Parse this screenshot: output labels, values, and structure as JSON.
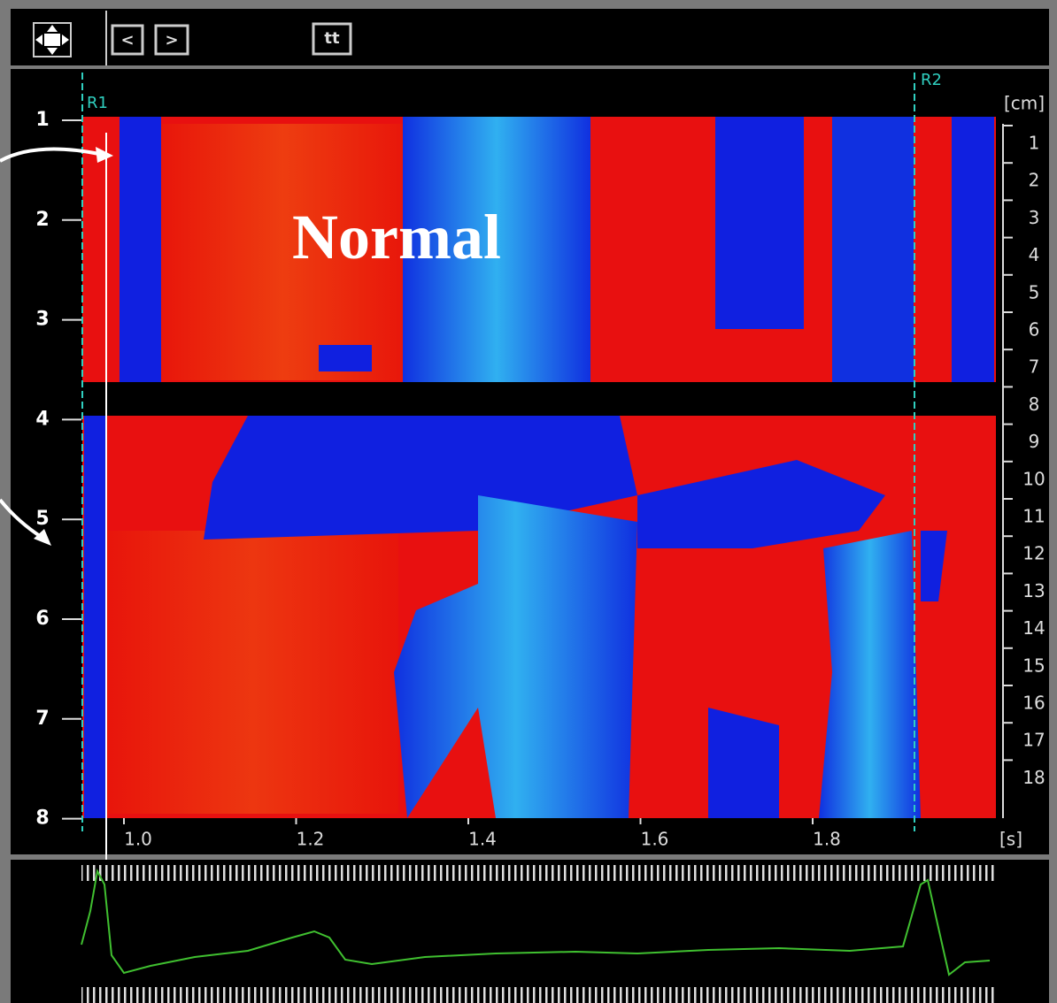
{
  "toolbar": {
    "buttons": [
      "<",
      ">",
      "tt"
    ]
  },
  "markers": [
    "R1",
    "R2"
  ],
  "annotation": "Normal",
  "depth_axis": {
    "labels": [
      "1",
      "2",
      "3",
      "4",
      "5",
      "6",
      "7",
      "8"
    ]
  },
  "segment_axis": {
    "unit": "[cm]",
    "labels": [
      "1",
      "2",
      "3",
      "4",
      "5",
      "6",
      "7",
      "8",
      "9",
      "10",
      "11",
      "12",
      "13",
      "14",
      "15",
      "16",
      "17",
      "18"
    ]
  },
  "time_axis": {
    "unit": "[s]",
    "labels": [
      "1.0",
      "1.2",
      "1.4",
      "1.6",
      "1.8"
    ]
  }
}
